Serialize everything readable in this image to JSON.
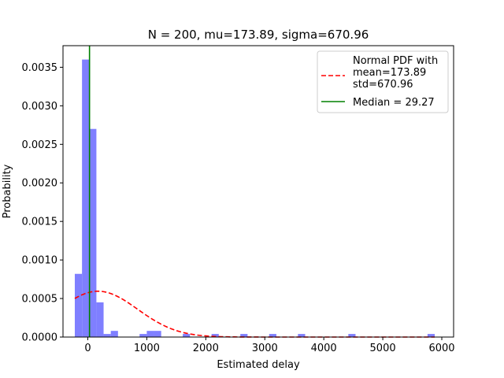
{
  "chart_data": {
    "type": "bar",
    "title": "N = 200, mu=173.89, sigma=670.96",
    "xlabel": "Estimated delay",
    "ylabel": "Probability",
    "xlim": [
      -420,
      6200
    ],
    "ylim": [
      0,
      0.00378
    ],
    "x_ticks": [
      0,
      1000,
      2000,
      3000,
      4000,
      5000,
      6000
    ],
    "x_tick_labels": [
      "0",
      "1000",
      "2000",
      "3000",
      "4000",
      "5000",
      "6000"
    ],
    "y_ticks": [
      0,
      0.0005,
      0.001,
      0.0015,
      0.002,
      0.0025,
      0.003,
      0.0035
    ],
    "y_tick_labels": [
      "0.0000",
      "0.0005",
      "0.0010",
      "0.0015",
      "0.0020",
      "0.0025",
      "0.0030",
      "0.0035"
    ],
    "grid": false,
    "legend_position": "upper right",
    "histogram": {
      "color": "#7f7fff",
      "bin_width": 122,
      "bin_starts": [
        -220,
        -98,
        24,
        146,
        268,
        390,
        512,
        634,
        756,
        878,
        1000,
        1122,
        1244,
        1366,
        1488,
        1610,
        1732,
        1854,
        1976,
        2098,
        2220,
        2342,
        2464,
        2586,
        2708,
        2830,
        2952,
        3074,
        3196,
        3318,
        3440,
        3562,
        3684,
        3806,
        3928,
        4050,
        4172,
        4294,
        4416,
        4538,
        4660,
        4782,
        4904,
        5026,
        5148,
        5270,
        5392,
        5514,
        5636,
        5758
      ],
      "probabilities": [
        0.00082,
        0.0036,
        0.0027,
        0.00045,
        4e-05,
        8e-05,
        0,
        0,
        0,
        4e-05,
        8e-05,
        8e-05,
        0,
        0,
        0,
        4e-05,
        0,
        0,
        0,
        4e-05,
        0,
        0,
        0,
        4e-05,
        0,
        0,
        0,
        4e-05,
        0,
        0,
        0,
        4e-05,
        0,
        0,
        0,
        0,
        0,
        0,
        4e-05,
        0,
        0,
        0,
        0,
        0,
        0,
        0,
        0,
        0,
        0,
        4e-05
      ]
    },
    "series": [
      {
        "name": "Normal PDF with\nmean=173.89\nstd=670.96",
        "kind": "normal_pdf",
        "mean": 173.89,
        "std": 670.96,
        "x_range": [
          -220,
          5880
        ],
        "color": "#ff0000",
        "line_style": "dashed"
      },
      {
        "name": "Median = 29.27",
        "kind": "vertical_line",
        "x": 29.27,
        "color": "#008000",
        "line_style": "solid"
      }
    ]
  }
}
